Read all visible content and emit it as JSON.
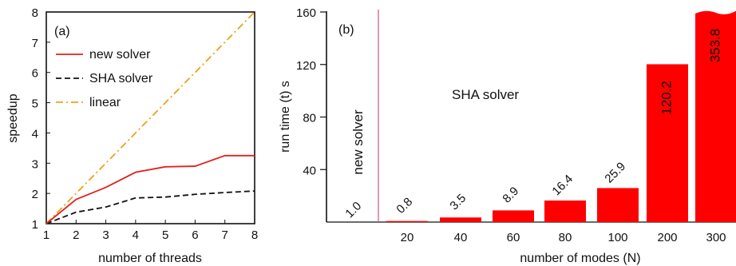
{
  "chart_data": [
    {
      "type": "line",
      "panel_label": "(a)",
      "xlabel": "number of threads",
      "ylabel": "speedup",
      "xlim": [
        1,
        8
      ],
      "ylim": [
        1,
        8
      ],
      "x_ticks": [
        "1",
        "2",
        "3",
        "4",
        "5",
        "6",
        "7",
        "8"
      ],
      "y_ticks": [
        "1",
        "2",
        "3",
        "4",
        "5",
        "6",
        "7",
        "8"
      ],
      "legend_position": "top-left",
      "x": [
        1,
        2,
        3,
        4,
        5,
        6,
        7,
        8
      ],
      "series": [
        {
          "name": "new solver",
          "values": [
            1.0,
            1.8,
            2.2,
            2.7,
            2.88,
            2.9,
            3.25,
            3.25
          ],
          "color": "#e0221e",
          "style": "solid"
        },
        {
          "name": "SHA solver",
          "values": [
            1.0,
            1.38,
            1.55,
            1.85,
            1.88,
            1.97,
            2.03,
            2.08
          ],
          "color": "#111111",
          "style": "dashed"
        },
        {
          "name": "linear",
          "values": [
            1,
            2,
            3,
            4,
            5,
            6,
            7,
            8
          ],
          "color": "#f0a01a",
          "style": "dashdot"
        }
      ]
    },
    {
      "type": "bar",
      "panel_label": "(b)",
      "xlabel": "number of modes (N)",
      "ylabel": "run time (t) s",
      "ylim": [
        0,
        160
      ],
      "y_ticks": [
        "40",
        "80",
        "120",
        "160"
      ],
      "categories": [
        "20",
        "40",
        "60",
        "80",
        "100",
        "200",
        "300"
      ],
      "values": [
        0.8,
        3.5,
        8.9,
        16.4,
        25.9,
        120.2,
        353.8
      ],
      "value_labels": [
        "0.8",
        "3.5",
        "8.9",
        "16.4",
        "25.9",
        "120.2",
        "353.8"
      ],
      "bar_color": "#ff0000",
      "new_solver_label": "new solver",
      "new_solver_value_label": "1.0",
      "series_label": "SHA solver"
    }
  ]
}
